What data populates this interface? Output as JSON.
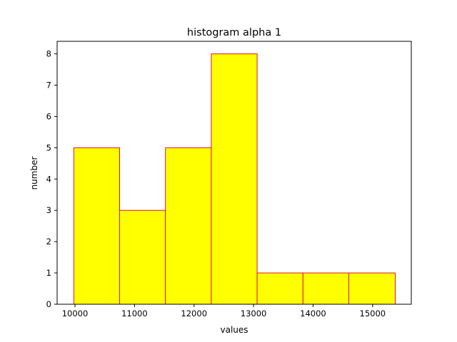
{
  "chart_data": {
    "type": "bar",
    "title": "histogram alpha 1",
    "xlabel": "values",
    "ylabel": "number",
    "xlim": [
      9700,
      15650
    ],
    "ylim": [
      0,
      8.4
    ],
    "xticks": [
      10000,
      11000,
      12000,
      13000,
      14000,
      15000
    ],
    "yticks": [
      0,
      1,
      2,
      3,
      4,
      5,
      6,
      7,
      8
    ],
    "bins": [
      {
        "x0": 9980,
        "x1": 10750,
        "count": 5
      },
      {
        "x0": 10750,
        "x1": 11520,
        "count": 3
      },
      {
        "x0": 11520,
        "x1": 12290,
        "count": 5
      },
      {
        "x0": 12290,
        "x1": 13060,
        "count": 8
      },
      {
        "x0": 13060,
        "x1": 13830,
        "count": 1
      },
      {
        "x0": 13830,
        "x1": 14600,
        "count": 1
      },
      {
        "x0": 14600,
        "x1": 15380,
        "count": 1
      }
    ],
    "bar_fill": "#ffff00",
    "bar_edge": "#dc143c",
    "grid": false,
    "legend": "none"
  }
}
